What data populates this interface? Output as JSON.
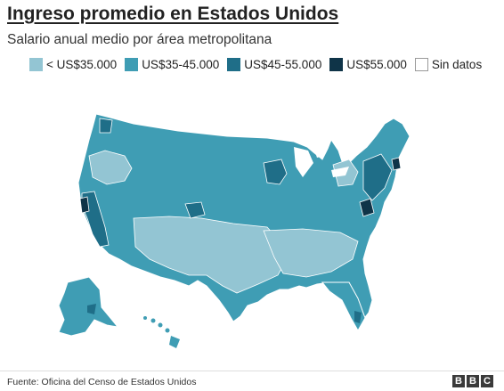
{
  "title": "Ingreso promedio en Estados Unidos",
  "subtitle": "Salario anual medio por área metropolitana",
  "legend": [
    {
      "label": "< US$35.000",
      "color": "#93c5d3"
    },
    {
      "label": "US$35-45.000",
      "color": "#3f9db4"
    },
    {
      "label": "US$45-55.000",
      "color": "#1f6e88"
    },
    {
      "label": "US$55.000",
      "color": "#0f3448"
    },
    {
      "label": "Sin datos",
      "color": "#ffffff"
    }
  ],
  "source": "Fuente: Oficina del Censo de Estados Unidos",
  "logo": [
    "B",
    "B",
    "C"
  ],
  "colors": {
    "border": "#ffffff",
    "water": "#ffffff"
  }
}
